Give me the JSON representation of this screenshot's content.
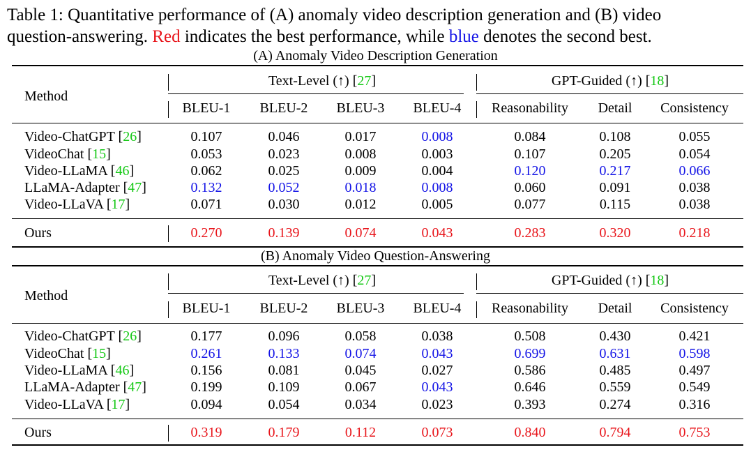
{
  "caption": {
    "line1": "Table 1: Quantitative performance of (A) anomaly video description generation and (B) video",
    "line2_a": "question-answering. ",
    "line2_red": "Red",
    "line2_b": " indicates the best performance, while ",
    "line2_blue": "blue",
    "line2_c": " denotes the second best."
  },
  "colors": {
    "best": "#e8141a",
    "second": "#1414e6",
    "citation": "#14c814"
  },
  "tables": [
    {
      "subtitle": "(A) Anomaly Video Description Generation",
      "method_header": "Method",
      "groups": [
        {
          "label": "Text-Level (↑) [",
          "cite": "27",
          "close": "]"
        },
        {
          "label": "GPT-Guided (↑) [",
          "cite": "18",
          "close": "]"
        }
      ],
      "columns": [
        "BLEU-1",
        "BLEU-2",
        "BLEU-3",
        "BLEU-4",
        "Reasonability",
        "Detail",
        "Consistency"
      ],
      "rows": [
        {
          "name": "Video-ChatGPT [",
          "cite": "26",
          "values": [
            "0.107",
            "0.046",
            "0.017",
            "0.008",
            "0.084",
            "0.108",
            "0.055"
          ],
          "styles": [
            "",
            "",
            "",
            "blue",
            "",
            "",
            ""
          ]
        },
        {
          "name": "VideoChat [",
          "cite": "15",
          "values": [
            "0.053",
            "0.023",
            "0.008",
            "0.003",
            "0.107",
            "0.205",
            "0.054"
          ],
          "styles": [
            "",
            "",
            "",
            "",
            "",
            "",
            ""
          ]
        },
        {
          "name": "Video-LLaMA [",
          "cite": "46",
          "values": [
            "0.062",
            "0.025",
            "0.009",
            "0.004",
            "0.120",
            "0.217",
            "0.066"
          ],
          "styles": [
            "",
            "",
            "",
            "",
            "blue",
            "blue",
            "blue"
          ]
        },
        {
          "name": "LLaMA-Adapter [",
          "cite": "47",
          "values": [
            "0.132",
            "0.052",
            "0.018",
            "0.008",
            "0.060",
            "0.091",
            "0.038"
          ],
          "styles": [
            "blue",
            "blue",
            "blue",
            "blue",
            "",
            "",
            ""
          ]
        },
        {
          "name": "Video-LLaVA [",
          "cite": "17",
          "values": [
            "0.071",
            "0.030",
            "0.012",
            "0.005",
            "0.077",
            "0.115",
            "0.038"
          ],
          "styles": [
            "",
            "",
            "",
            "",
            "",
            "",
            ""
          ]
        }
      ],
      "ours": {
        "name": "Ours",
        "values": [
          "0.270",
          "0.139",
          "0.074",
          "0.043",
          "0.283",
          "0.320",
          "0.218"
        ]
      }
    },
    {
      "subtitle": "(B) Anomaly Video Question-Answering",
      "method_header": "Method",
      "groups": [
        {
          "label": "Text-Level (↑) [",
          "cite": "27",
          "close": "]"
        },
        {
          "label": "GPT-Guided (↑) [",
          "cite": "18",
          "close": "]"
        }
      ],
      "columns": [
        "BLEU-1",
        "BLEU-2",
        "BLEU-3",
        "BLEU-4",
        "Reasonability",
        "Detail",
        "Consistency"
      ],
      "rows": [
        {
          "name": "Video-ChatGPT [",
          "cite": "26",
          "values": [
            "0.177",
            "0.096",
            "0.058",
            "0.038",
            "0.508",
            "0.430",
            "0.421"
          ],
          "styles": [
            "",
            "",
            "",
            "",
            "",
            "",
            ""
          ]
        },
        {
          "name": "VideoChat [",
          "cite": "15",
          "values": [
            "0.261",
            "0.133",
            "0.074",
            "0.043",
            "0.699",
            "0.631",
            "0.598"
          ],
          "styles": [
            "blue",
            "blue",
            "blue",
            "blue",
            "blue",
            "blue",
            "blue"
          ]
        },
        {
          "name": "Video-LLaMA [",
          "cite": "46",
          "values": [
            "0.156",
            "0.081",
            "0.045",
            "0.027",
            "0.586",
            "0.485",
            "0.497"
          ],
          "styles": [
            "",
            "",
            "",
            "",
            "",
            "",
            ""
          ]
        },
        {
          "name": "LLaMA-Adapter [",
          "cite": "47",
          "values": [
            "0.199",
            "0.109",
            "0.067",
            "0.043",
            "0.646",
            "0.559",
            "0.549"
          ],
          "styles": [
            "",
            "",
            "",
            "blue",
            "",
            "",
            ""
          ]
        },
        {
          "name": "Video-LLaVA [",
          "cite": "17",
          "values": [
            "0.094",
            "0.054",
            "0.034",
            "0.023",
            "0.393",
            "0.274",
            "0.316"
          ],
          "styles": [
            "",
            "",
            "",
            "",
            "",
            "",
            ""
          ]
        }
      ],
      "ours": {
        "name": "Ours",
        "values": [
          "0.319",
          "0.179",
          "0.112",
          "0.073",
          "0.840",
          "0.794",
          "0.753"
        ]
      }
    }
  ]
}
